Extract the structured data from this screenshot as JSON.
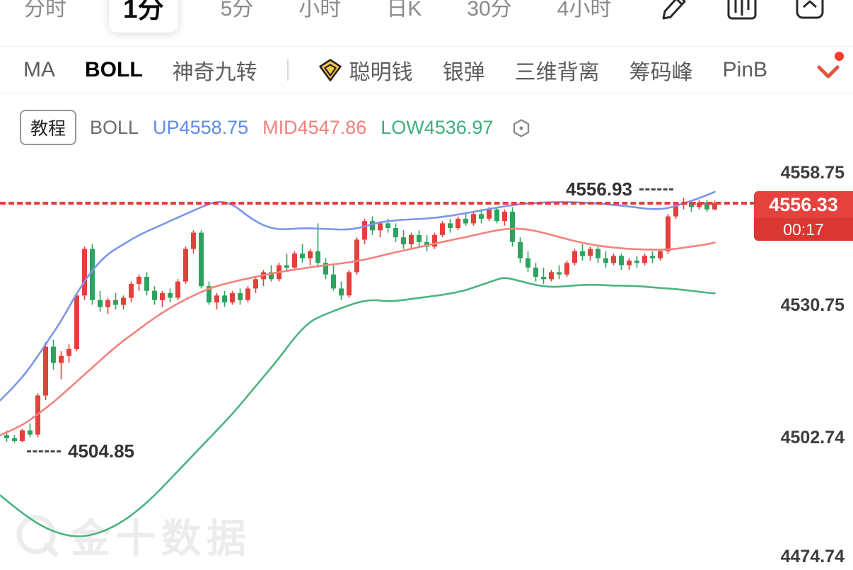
{
  "top_tabs": {
    "items": [
      {
        "label": "分时",
        "selected": false
      },
      {
        "label": "1分",
        "selected": true
      },
      {
        "label": "5分",
        "selected": false
      },
      {
        "label": "小时",
        "selected": false
      },
      {
        "label": "日K",
        "selected": false
      },
      {
        "label": "30分",
        "selected": false
      },
      {
        "label": "4小时",
        "selected": false
      }
    ],
    "icons": [
      "draw-icon",
      "chart-style-icon",
      "panels-icon"
    ]
  },
  "indicator_bar": {
    "items": [
      {
        "label": "MA",
        "selected": false
      },
      {
        "label": "BOLL",
        "selected": true
      },
      {
        "label": "神奇九转",
        "selected": false
      },
      {
        "type": "divider"
      },
      {
        "label": "聪明钱",
        "icon": "gem-icon",
        "selected": false
      },
      {
        "label": "银弹",
        "selected": false
      },
      {
        "label": "三维背离",
        "selected": false
      },
      {
        "label": "筹码峰",
        "selected": false
      },
      {
        "label": "PinB",
        "selected": false
      }
    ],
    "notification_dot": true
  },
  "legend": {
    "tutorial": "教程",
    "name": "BOLL",
    "up": "UP4558.75",
    "mid": "MID4547.86",
    "low": "LOW4536.97"
  },
  "axis": {
    "labels": [
      "4558.75",
      "4530.75",
      "4502.74",
      "4474.74"
    ]
  },
  "price_marker": {
    "price": "4556.33",
    "countdown": "00:17"
  },
  "annotations": {
    "high": "4556.93",
    "low": "4504.85"
  },
  "watermark": {
    "text": "金十数据"
  },
  "colors": {
    "candle_up": "#e2413c",
    "candle_down": "#2ea35f",
    "band_upper": "#7b96ea",
    "band_middle": "#f3837d",
    "band_lower": "#4db381",
    "accent_red": "#e0403b"
  },
  "chart_data": {
    "type": "candlestick",
    "timeframe": "1分",
    "indicator": "BOLL",
    "boll": {
      "up": 4558.75,
      "mid": 4547.86,
      "low": 4536.97
    },
    "last_close": 4556.33,
    "countdown": "00:17",
    "recent_high": 4556.93,
    "session_low": 4504.85,
    "y_axis_ticks": [
      4558.75,
      4530.75,
      4502.74,
      4474.74
    ],
    "candles": [
      [
        4506.5,
        4507.5,
        4505.0,
        4505.8
      ],
      [
        4505.8,
        4506.5,
        4504.85,
        4505.2
      ],
      [
        4505.2,
        4507.8,
        4504.9,
        4507.5
      ],
      [
        4507.5,
        4509.0,
        4506.0,
        4506.6
      ],
      [
        4506.6,
        4515.5,
        4506.0,
        4515.0
      ],
      [
        4515.0,
        4526.5,
        4514.0,
        4525.5
      ],
      [
        4525.5,
        4527.0,
        4520.5,
        4522.0
      ],
      [
        4522.0,
        4524.5,
        4518.5,
        4523.5
      ],
      [
        4523.5,
        4526.0,
        4522.0,
        4525.0
      ],
      [
        4525.0,
        4537.0,
        4524.5,
        4536.5
      ],
      [
        4536.5,
        4547.0,
        4535.5,
        4546.5
      ],
      [
        4546.5,
        4547.5,
        4534.5,
        4535.5
      ],
      [
        4535.5,
        4537.5,
        4533.0,
        4534.0
      ],
      [
        4534.0,
        4536.0,
        4532.5,
        4535.5
      ],
      [
        4535.5,
        4537.0,
        4533.5,
        4534.5
      ],
      [
        4534.5,
        4536.5,
        4533.5,
        4536.0
      ],
      [
        4536.0,
        4539.5,
        4535.0,
        4539.0
      ],
      [
        4539.0,
        4541.0,
        4537.5,
        4540.5
      ],
      [
        4540.5,
        4541.5,
        4536.5,
        4537.5
      ],
      [
        4537.5,
        4538.5,
        4534.5,
        4535.5
      ],
      [
        4535.5,
        4537.5,
        4534.0,
        4537.0
      ],
      [
        4537.0,
        4538.0,
        4535.0,
        4536.0
      ],
      [
        4536.0,
        4540.0,
        4535.5,
        4539.5
      ],
      [
        4539.5,
        4547.0,
        4539.0,
        4546.5
      ],
      [
        4546.5,
        4550.5,
        4545.5,
        4550.0
      ],
      [
        4550.0,
        4550.5,
        4538.0,
        4538.5
      ],
      [
        4538.5,
        4539.5,
        4534.5,
        4535.0
      ],
      [
        4535.0,
        4537.0,
        4533.5,
        4536.5
      ],
      [
        4536.5,
        4537.5,
        4534.0,
        4535.0
      ],
      [
        4535.0,
        4537.5,
        4534.5,
        4537.0
      ],
      [
        4537.0,
        4538.0,
        4534.5,
        4535.5
      ],
      [
        4535.5,
        4538.5,
        4535.0,
        4538.0
      ],
      [
        4538.0,
        4540.5,
        4537.0,
        4540.0
      ],
      [
        4540.0,
        4542.0,
        4538.5,
        4541.5
      ],
      [
        4541.5,
        4543.0,
        4539.5,
        4540.0
      ],
      [
        4540.0,
        4543.5,
        4539.5,
        4543.0
      ],
      [
        4543.0,
        4545.5,
        4541.5,
        4542.5
      ],
      [
        4542.5,
        4546.0,
        4542.0,
        4545.5
      ],
      [
        4545.5,
        4547.5,
        4543.5,
        4544.5
      ],
      [
        4544.5,
        4546.5,
        4543.0,
        4546.0
      ],
      [
        4546.0,
        4552.0,
        4542.5,
        4543.5
      ],
      [
        4543.5,
        4544.5,
        4540.0,
        4541.0
      ],
      [
        4541.0,
        4543.0,
        4537.5,
        4538.0
      ],
      [
        4538.0,
        4539.5,
        4535.5,
        4536.5
      ],
      [
        4536.5,
        4542.0,
        4536.0,
        4541.5
      ],
      [
        4541.5,
        4549.0,
        4541.0,
        4548.5
      ],
      [
        4548.5,
        4553.0,
        4547.5,
        4552.5
      ],
      [
        4552.5,
        4553.5,
        4549.5,
        4550.5
      ],
      [
        4550.5,
        4552.5,
        4549.0,
        4552.0
      ],
      [
        4552.0,
        4553.0,
        4550.0,
        4551.0
      ],
      [
        4551.0,
        4552.0,
        4548.0,
        4549.0
      ],
      [
        4549.0,
        4550.5,
        4546.5,
        4547.5
      ],
      [
        4547.5,
        4550.0,
        4546.5,
        4549.5
      ],
      [
        4549.5,
        4550.5,
        4547.0,
        4548.0
      ],
      [
        4548.0,
        4549.5,
        4546.0,
        4547.0
      ],
      [
        4547.0,
        4550.0,
        4546.5,
        4549.5
      ],
      [
        4549.5,
        4552.5,
        4549.0,
        4552.0
      ],
      [
        4552.0,
        4553.0,
        4550.0,
        4551.0
      ],
      [
        4551.0,
        4553.5,
        4550.5,
        4553.0
      ],
      [
        4553.0,
        4554.0,
        4551.5,
        4552.0
      ],
      [
        4552.0,
        4554.5,
        4551.5,
        4554.0
      ],
      [
        4554.0,
        4555.0,
        4552.0,
        4553.0
      ],
      [
        4553.0,
        4555.5,
        4552.5,
        4555.0
      ],
      [
        4555.0,
        4555.5,
        4552.0,
        4552.5
      ],
      [
        4552.5,
        4555.0,
        4551.5,
        4554.5
      ],
      [
        4554.5,
        4555.5,
        4547.0,
        4548.0
      ],
      [
        4548.0,
        4549.0,
        4543.5,
        4544.5
      ],
      [
        4544.5,
        4546.0,
        4541.5,
        4542.5
      ],
      [
        4542.5,
        4543.5,
        4539.5,
        4540.5
      ],
      [
        4540.5,
        4542.5,
        4539.0,
        4540.0
      ],
      [
        4540.0,
        4542.0,
        4539.5,
        4541.5
      ],
      [
        4541.5,
        4543.0,
        4540.0,
        4541.0
      ],
      [
        4541.0,
        4544.0,
        4540.5,
        4543.5
      ],
      [
        4543.5,
        4546.5,
        4543.0,
        4546.0
      ],
      [
        4546.0,
        4547.5,
        4544.0,
        4545.0
      ],
      [
        4545.0,
        4547.0,
        4544.0,
        4546.5
      ],
      [
        4546.5,
        4547.0,
        4543.5,
        4544.5
      ],
      [
        4544.5,
        4546.0,
        4542.5,
        4543.5
      ],
      [
        4543.5,
        4545.5,
        4543.0,
        4545.0
      ],
      [
        4545.0,
        4545.5,
        4542.0,
        4543.0
      ],
      [
        4543.0,
        4544.5,
        4542.0,
        4544.0
      ],
      [
        4544.0,
        4545.0,
        4542.5,
        4543.5
      ],
      [
        4543.5,
        4545.5,
        4543.0,
        4545.0
      ],
      [
        4545.0,
        4546.0,
        4543.5,
        4544.5
      ],
      [
        4544.5,
        4546.5,
        4544.0,
        4546.0
      ],
      [
        4546.0,
        4554.0,
        4545.5,
        4553.5
      ],
      [
        4553.5,
        4556.5,
        4553.0,
        4556.0
      ],
      [
        4556.0,
        4557.5,
        4555.0,
        4556.5
      ],
      [
        4556.5,
        4557.0,
        4554.5,
        4555.5
      ],
      [
        4555.5,
        4557.0,
        4555.0,
        4556.5
      ],
      [
        4556.5,
        4557.0,
        4554.5,
        4555.0
      ],
      [
        4555.0,
        4556.9,
        4554.8,
        4556.33
      ]
    ],
    "bands": {
      "upper": [
        [
          -0.8,
          4514
        ],
        [
          1,
          4517
        ],
        [
          3,
          4521
        ],
        [
          5,
          4526
        ],
        [
          7,
          4531
        ],
        [
          9,
          4537
        ],
        [
          11,
          4542
        ],
        [
          13,
          4545.5
        ],
        [
          15,
          4547.5
        ],
        [
          17,
          4549.5
        ],
        [
          19,
          4551
        ],
        [
          21,
          4552.5
        ],
        [
          23,
          4554
        ],
        [
          25,
          4555.5
        ],
        [
          27,
          4556.8
        ],
        [
          29,
          4556.2
        ],
        [
          31,
          4553.5
        ],
        [
          33,
          4551.5
        ],
        [
          35,
          4550.6
        ],
        [
          38,
          4551
        ],
        [
          41,
          4550.8
        ],
        [
          44,
          4550.6
        ],
        [
          46,
          4551.3
        ],
        [
          48,
          4552.3
        ],
        [
          51,
          4552.8
        ],
        [
          54,
          4553
        ],
        [
          57,
          4553.6
        ],
        [
          60,
          4554.5
        ],
        [
          63,
          4555.4
        ],
        [
          66,
          4556.2
        ],
        [
          69,
          4556.5
        ],
        [
          72,
          4556.6
        ],
        [
          75,
          4556.4
        ],
        [
          78,
          4556
        ],
        [
          81,
          4555.4
        ],
        [
          83,
          4555
        ],
        [
          85,
          4555.2
        ],
        [
          87,
          4556.3
        ],
        [
          89,
          4557.4
        ],
        [
          91,
          4558.75
        ]
      ],
      "middle": [
        [
          -0.8,
          4506.5
        ],
        [
          2,
          4508.5
        ],
        [
          4,
          4511
        ],
        [
          6,
          4513.5
        ],
        [
          8,
          4516.5
        ],
        [
          10,
          4519.5
        ],
        [
          12,
          4522.5
        ],
        [
          14,
          4525.5
        ],
        [
          16,
          4528
        ],
        [
          18,
          4530.5
        ],
        [
          20,
          4532.8
        ],
        [
          22,
          4534.8
        ],
        [
          24,
          4536.5
        ],
        [
          26,
          4538
        ],
        [
          28,
          4539
        ],
        [
          30,
          4539.8
        ],
        [
          32,
          4540.5
        ],
        [
          34,
          4541.2
        ],
        [
          36,
          4541.8
        ],
        [
          38,
          4542.3
        ],
        [
          40,
          4542.8
        ],
        [
          42,
          4543.2
        ],
        [
          44,
          4543.6
        ],
        [
          46,
          4544.2
        ],
        [
          48,
          4545
        ],
        [
          50,
          4545.8
        ],
        [
          52,
          4546.5
        ],
        [
          54,
          4547.3
        ],
        [
          56,
          4548
        ],
        [
          58,
          4548.7
        ],
        [
          60,
          4549.4
        ],
        [
          62,
          4550.2
        ],
        [
          64,
          4550.8
        ],
        [
          66,
          4550.9
        ],
        [
          68,
          4550.4
        ],
        [
          70,
          4549.5
        ],
        [
          72,
          4548.6
        ],
        [
          74,
          4547.8
        ],
        [
          76,
          4547.2
        ],
        [
          78,
          4546.8
        ],
        [
          80,
          4546.5
        ],
        [
          82,
          4546.4
        ],
        [
          84,
          4546.3
        ],
        [
          86,
          4546.5
        ],
        [
          88,
          4547
        ],
        [
          90,
          4547.5
        ],
        [
          91,
          4547.86
        ]
      ],
      "lower": [
        [
          -0.8,
          4493.5
        ],
        [
          1,
          4491
        ],
        [
          3,
          4488.5
        ],
        [
          5,
          4486.5
        ],
        [
          7,
          4485.2
        ],
        [
          9,
          4484.6
        ],
        [
          11,
          4485
        ],
        [
          13,
          4486.2
        ],
        [
          15,
          4488
        ],
        [
          17,
          4490.5
        ],
        [
          19,
          4493.5
        ],
        [
          21,
          4497
        ],
        [
          23,
          4500.5
        ],
        [
          25,
          4504
        ],
        [
          27,
          4507.5
        ],
        [
          29,
          4511
        ],
        [
          31,
          4515
        ],
        [
          33,
          4519
        ],
        [
          35,
          4523
        ],
        [
          37,
          4527.5
        ],
        [
          39,
          4531
        ],
        [
          41,
          4532.5
        ],
        [
          43,
          4533.8
        ],
        [
          45,
          4535
        ],
        [
          47,
          4535.6
        ],
        [
          49,
          4535.2
        ],
        [
          51,
          4535.5
        ],
        [
          53,
          4536
        ],
        [
          55,
          4536.4
        ],
        [
          57,
          4536.9
        ],
        [
          59,
          4537.6
        ],
        [
          61,
          4538.8
        ],
        [
          63,
          4539.9
        ],
        [
          64,
          4540.4
        ],
        [
          66,
          4539.6
        ],
        [
          68,
          4538.7
        ],
        [
          70,
          4538.3
        ],
        [
          72,
          4538.5
        ],
        [
          74,
          4538.8
        ],
        [
          76,
          4538.8
        ],
        [
          78,
          4538.6
        ],
        [
          80,
          4538.6
        ],
        [
          82,
          4538.4
        ],
        [
          84,
          4538.1
        ],
        [
          86,
          4537.9
        ],
        [
          88,
          4537.5
        ],
        [
          90,
          4537.1
        ],
        [
          91,
          4536.97
        ]
      ]
    }
  }
}
